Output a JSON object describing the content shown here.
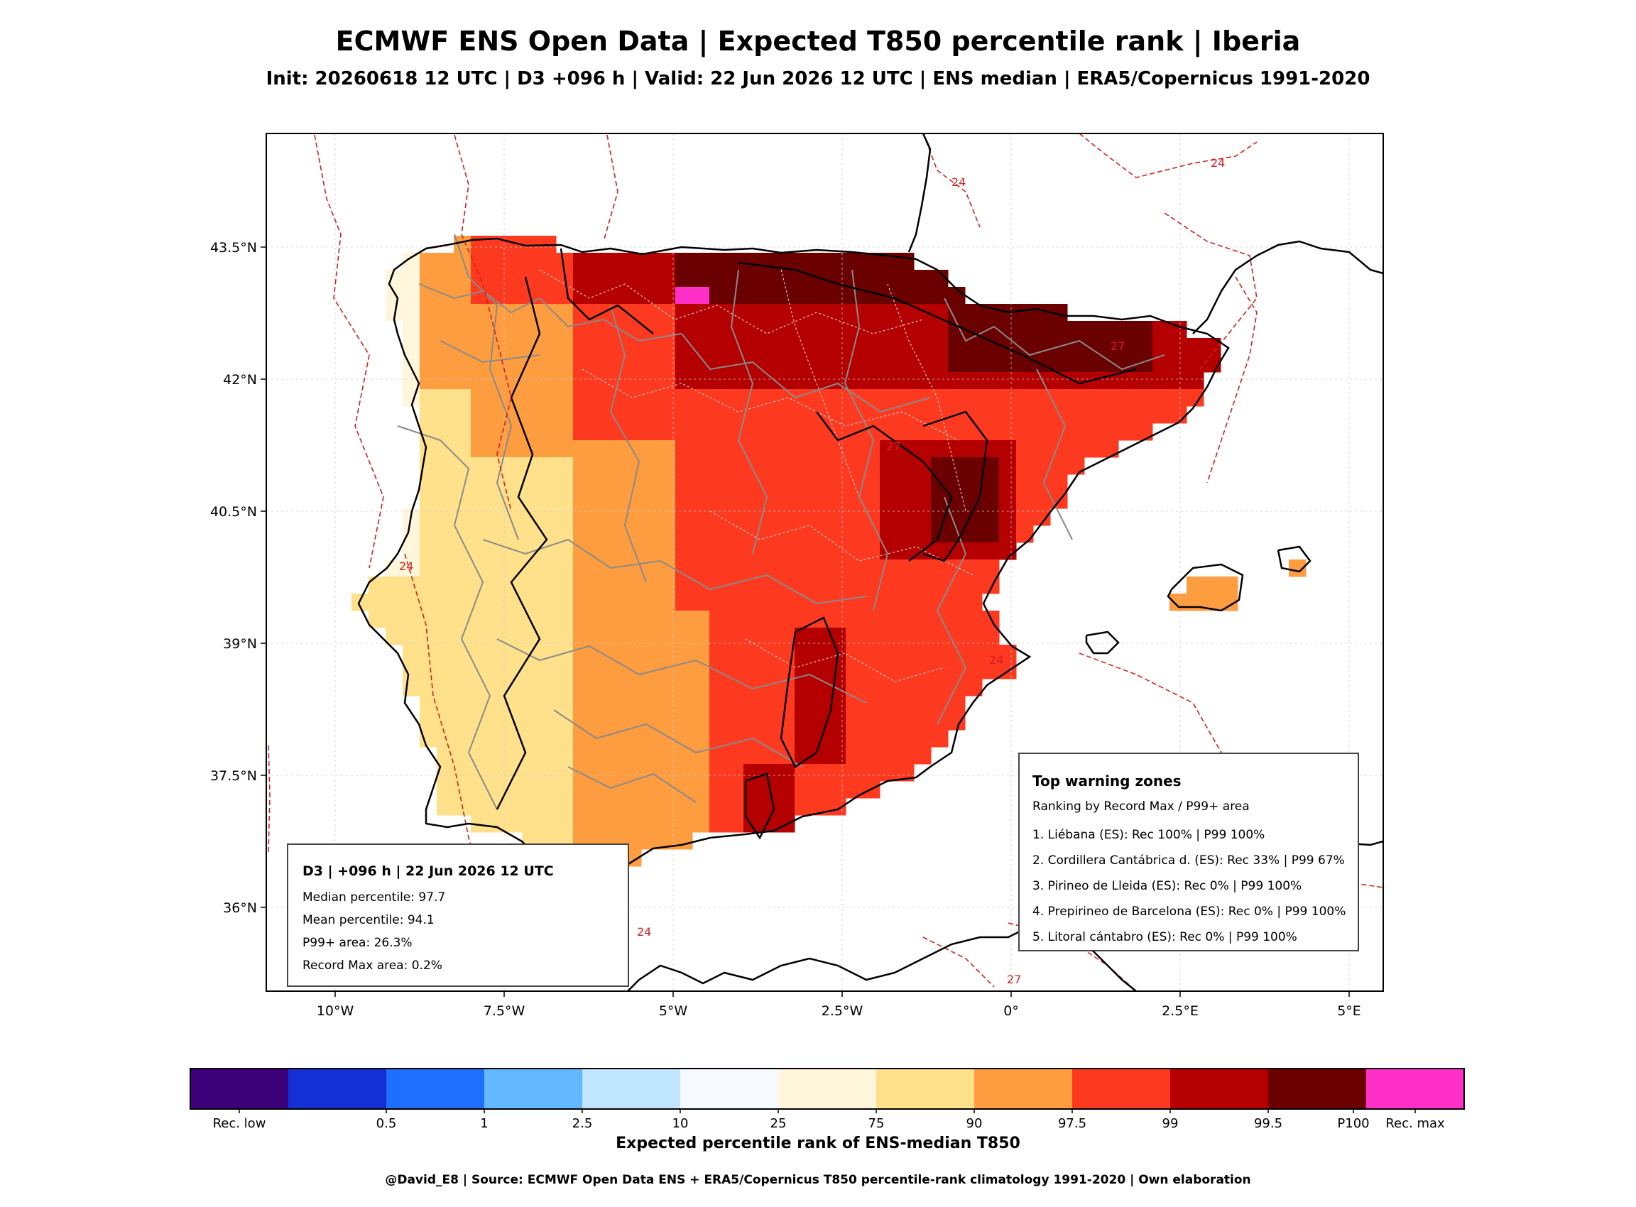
{
  "header": {
    "title": "ECMWF ENS Open Data | Expected T850 percentile rank | Iberia",
    "subtitle": "Init: 20260618 12 UTC | D3 +096 h | Valid: 22 Jun 2026 12 UTC | ENS median | ERA5/Copernicus 1991-2020"
  },
  "map": {
    "lon_range": [
      -11,
      5.5
    ],
    "lat_range": [
      35.0,
      44.8
    ],
    "lon_ticks": [
      "10°W",
      "7.5°W",
      "5°W",
      "2.5°W",
      "0°",
      "2.5°E",
      "5°E"
    ],
    "lat_ticks": [
      "43.5°N",
      "42°N",
      "40.5°N",
      "39°N",
      "37.5°N",
      "36°N"
    ],
    "contour_labels": [
      "24",
      "24",
      "27",
      "27",
      "24",
      "24",
      "24",
      "27"
    ],
    "colors": {
      "contour": "#d42020",
      "coast": "#000000",
      "border": "#888888",
      "subregion": "#e8e8e8"
    }
  },
  "colorbar": {
    "colors": [
      "#3c0078",
      "#1430d4",
      "#1e6eff",
      "#64b8ff",
      "#c0e6ff",
      "#f6faff",
      "#fff6dc",
      "#fee18a",
      "#fe9d40",
      "#fd3a20",
      "#b40000",
      "#6a0000",
      "#ff30c8"
    ],
    "labels": [
      "Rec. low",
      "0.5",
      "1",
      "2.5",
      "10",
      "25",
      "75",
      "90",
      "97.5",
      "99",
      "99.5",
      "P100",
      "Rec. max"
    ],
    "title": "Expected percentile rank of ENS-median T850"
  },
  "stats_box": {
    "title": "D3 | +096 h | 22 Jun 2026 12 UTC",
    "median": "Median percentile: 97.7",
    "mean": "Mean percentile: 94.1",
    "p99_area": "P99+ area: 26.3%",
    "record_area": "Record Max area: 0.2%"
  },
  "warning_box": {
    "title": "Top warning zones",
    "subtitle": "Ranking by Record Max / P99+ area",
    "items": [
      "1. Liébana (ES): Rec 100% | P99 100%",
      "2. Cordillera Cantábrica d. (ES): Rec 33% | P99 67%",
      "3. Pirineo de Lleida (ES): Rec 0% | P99 100%",
      "4. Prepirineo de Barcelona (ES): Rec 0% | P99 100%",
      "5. Litoral cántabro (ES): Rec 0% | P99 100%"
    ]
  },
  "footer": "@David_E8 | Source: ECMWF Open Data ENS + ERA5/Copernicus T850 percentile-rank climatology 1991-2020 | Own elaboration"
}
